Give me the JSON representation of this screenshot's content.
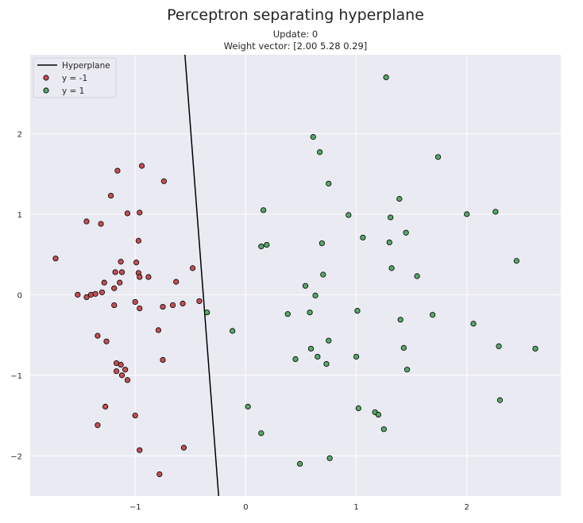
{
  "chart_data": {
    "type": "scatter",
    "title": "Perceptron separating hyperplane",
    "subtitle_lines": [
      "Update: 0",
      "Weight vector: [2.00 5.28 0.29]"
    ],
    "xlabel": "",
    "ylabel": "",
    "xlim": [
      -1.95,
      2.85
    ],
    "ylim": [
      -2.5,
      2.98
    ],
    "x_ticks": [
      -1,
      0,
      1,
      2
    ],
    "y_ticks": [
      -2,
      -1,
      0,
      1,
      2
    ],
    "x_tick_labels": [
      "−1",
      "0",
      "1",
      "2"
    ],
    "y_tick_labels": [
      "−2",
      "−1",
      "0",
      "1",
      "2"
    ],
    "grid": true,
    "legend_position": "top-left",
    "legend": [
      "Hyperplane",
      "y = -1",
      "y = 1"
    ],
    "hyperplane": {
      "weights": [
        2.0,
        5.28,
        0.29
      ],
      "x": [
        -0.55,
        -0.245
      ],
      "y": [
        2.98,
        -2.5
      ],
      "color": "#000000"
    },
    "series": [
      {
        "name": "y = -1",
        "color": "#c44e52",
        "points": [
          [
            -1.72,
            0.45
          ],
          [
            -1.52,
            0.0
          ],
          [
            -1.44,
            -0.03
          ],
          [
            -1.44,
            0.91
          ],
          [
            -1.4,
            0.0
          ],
          [
            -1.36,
            0.01
          ],
          [
            -1.34,
            -0.51
          ],
          [
            -1.34,
            -1.62
          ],
          [
            -1.31,
            0.88
          ],
          [
            -1.3,
            0.03
          ],
          [
            -1.28,
            0.15
          ],
          [
            -1.26,
            -0.58
          ],
          [
            -1.27,
            -1.39
          ],
          [
            -1.22,
            1.23
          ],
          [
            -1.19,
            -0.13
          ],
          [
            -1.19,
            0.08
          ],
          [
            -1.18,
            0.28
          ],
          [
            -1.17,
            -0.85
          ],
          [
            -1.17,
            -0.95
          ],
          [
            -1.16,
            1.54
          ],
          [
            -1.14,
            0.15
          ],
          [
            -1.13,
            0.41
          ],
          [
            -1.13,
            -0.87
          ],
          [
            -1.12,
            0.28
          ],
          [
            -1.12,
            -1.0
          ],
          [
            -1.09,
            -0.93
          ],
          [
            -1.07,
            -1.06
          ],
          [
            -1.07,
            1.01
          ],
          [
            -1.0,
            -0.09
          ],
          [
            -1.0,
            -1.5
          ],
          [
            -0.99,
            0.4
          ],
          [
            -0.97,
            0.67
          ],
          [
            -0.97,
            0.27
          ],
          [
            -0.96,
            0.22
          ],
          [
            -0.96,
            -0.17
          ],
          [
            -0.96,
            1.02
          ],
          [
            -0.96,
            -1.93
          ],
          [
            -0.94,
            1.6
          ],
          [
            -0.88,
            0.22
          ],
          [
            -0.79,
            -0.44
          ],
          [
            -0.78,
            -2.23
          ],
          [
            -0.75,
            -0.15
          ],
          [
            -0.75,
            -0.81
          ],
          [
            -0.74,
            1.41
          ],
          [
            -0.66,
            -0.13
          ],
          [
            -0.63,
            0.16
          ],
          [
            -0.57,
            -0.11
          ],
          [
            -0.56,
            -1.9
          ],
          [
            -0.48,
            0.33
          ],
          [
            -0.42,
            -0.08
          ]
        ]
      },
      {
        "name": "y = 1",
        "color": "#55a868",
        "points": [
          [
            -0.35,
            -0.22
          ],
          [
            -0.12,
            -0.45
          ],
          [
            0.02,
            -1.39
          ],
          [
            0.14,
            0.6
          ],
          [
            0.14,
            -1.72
          ],
          [
            0.16,
            1.05
          ],
          [
            0.19,
            0.62
          ],
          [
            0.38,
            -0.24
          ],
          [
            0.45,
            -0.8
          ],
          [
            0.49,
            -2.1
          ],
          [
            0.54,
            0.11
          ],
          [
            0.58,
            -0.22
          ],
          [
            0.59,
            -0.67
          ],
          [
            0.61,
            1.96
          ],
          [
            0.63,
            -0.01
          ],
          [
            0.65,
            -0.77
          ],
          [
            0.67,
            1.77
          ],
          [
            0.69,
            0.64
          ],
          [
            0.7,
            0.25
          ],
          [
            0.73,
            -0.86
          ],
          [
            0.75,
            -0.57
          ],
          [
            0.75,
            1.38
          ],
          [
            0.76,
            -2.03
          ],
          [
            0.93,
            0.99
          ],
          [
            1.0,
            -0.77
          ],
          [
            1.01,
            -0.2
          ],
          [
            1.02,
            -1.41
          ],
          [
            1.06,
            0.71
          ],
          [
            1.17,
            -1.46
          ],
          [
            1.2,
            -1.49
          ],
          [
            1.25,
            -1.67
          ],
          [
            1.27,
            2.7
          ],
          [
            1.3,
            0.65
          ],
          [
            1.31,
            0.96
          ],
          [
            1.32,
            0.33
          ],
          [
            1.39,
            1.19
          ],
          [
            1.4,
            -0.31
          ],
          [
            1.43,
            -0.66
          ],
          [
            1.45,
            0.77
          ],
          [
            1.46,
            -0.93
          ],
          [
            1.55,
            0.23
          ],
          [
            1.69,
            -0.25
          ],
          [
            1.74,
            1.71
          ],
          [
            2.0,
            1.0
          ],
          [
            2.06,
            -0.36
          ],
          [
            2.26,
            1.03
          ],
          [
            2.29,
            -0.64
          ],
          [
            2.3,
            -1.31
          ],
          [
            2.45,
            0.42
          ],
          [
            2.62,
            -0.67
          ]
        ]
      }
    ]
  }
}
